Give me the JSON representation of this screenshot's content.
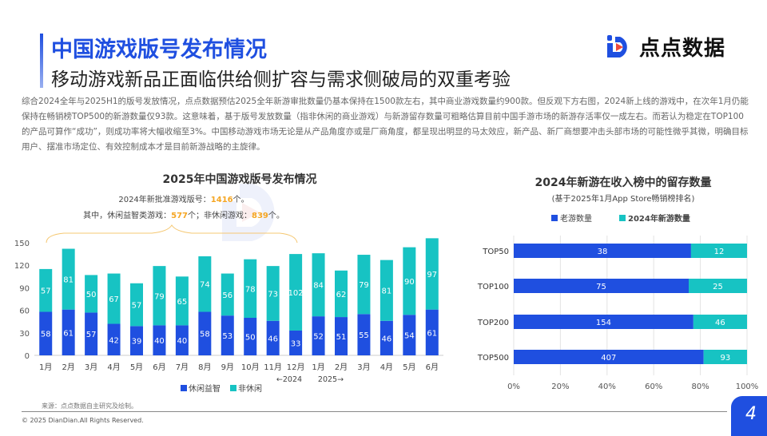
{
  "header": {
    "title": "中国游戏版号发布情况",
    "subtitle": "移动游戏新品正面临供给侧扩容与需求侧破局的双重考验",
    "logo_text": "点点数据"
  },
  "paragraph": "综合2024全年与2025H1的版号发放情况，点点数据预估2025全年新游审批数量仍基本保持在1500款左右，其中商业游戏数量约900款。但反观下方右图，2024新上线的游戏中，在次年1月仍能保持在畅销榜TOP500的新游数量仅93款。这意味着，基于版号发放数量（指非休闲的商业游戏）与新游留存数量可粗略估算目前中国手游市场的新游存活率仅一成左右。而若认为稳定在TOP100的产品可算作“成功”，则成功率将大幅收缩至3%。中国移动游戏市场无论是从产品角度亦或是厂商角度，都呈现出明显的马太效应，新产品、新厂商想要冲击头部市场的可能性微乎其微，明确目标用户、摆准市场定位、有效控制成本才是目前新游战略的主旋律。",
  "watermark": "点点数据",
  "annotation": {
    "line1_prefix": "2024年新批准游戏版号：",
    "line1_value": "1416",
    "line1_suffix": "个。",
    "line2_prefix": "其中，休闲益智类游戏：",
    "line2_value1": "577",
    "line2_mid": "个；非休闲游戏：",
    "line2_value2": "839",
    "line2_suffix": "个。",
    "highlight_color": "#f5a623"
  },
  "chart_data": [
    {
      "type": "bar",
      "stacked": true,
      "title": "2025年中国游戏版号发布情况",
      "categories": [
        "1月",
        "2月",
        "3月",
        "4月",
        "5月",
        "6月",
        "7月",
        "8月",
        "9月",
        "10月",
        "11月",
        "12月",
        "1月",
        "2月",
        "3月",
        "4月",
        "5月",
        "6月"
      ],
      "year_markers": {
        "left": "←2024",
        "right": "2025→"
      },
      "ylim": [
        0,
        150
      ],
      "yticks": [
        0,
        30,
        60,
        90,
        120,
        150
      ],
      "series": [
        {
          "name": "休闲益智",
          "color": "#1f4fe0",
          "values": [
            58,
            61,
            57,
            42,
            39,
            40,
            40,
            58,
            53,
            50,
            46,
            33,
            52,
            51,
            55,
            46,
            54,
            61
          ]
        },
        {
          "name": "非休闲",
          "color": "#17c3c3",
          "values": [
            57,
            81,
            50,
            67,
            57,
            79,
            65,
            74,
            56,
            78,
            73,
            102,
            84,
            62,
            79,
            81,
            90,
            97
          ]
        }
      ],
      "legend": "bottom"
    },
    {
      "type": "bar",
      "orientation": "horizontal",
      "stacked": true,
      "percent": true,
      "title": "2024年新游在收入榜中的留存数量",
      "subtitle": "(基于2025年1月App Store畅销榜排名)",
      "categories": [
        "TOP50",
        "TOP100",
        "TOP200",
        "TOP500"
      ],
      "xticks": [
        "0%",
        "20%",
        "40%",
        "60%",
        "80%",
        "100%"
      ],
      "series": [
        {
          "name": "老游数量",
          "color": "#1f4fe0",
          "values": [
            38,
            75,
            154,
            407
          ]
        },
        {
          "name": "2024年新游数量",
          "color": "#17c3c3",
          "values": [
            12,
            25,
            46,
            93
          ]
        }
      ],
      "legend": "top",
      "grid": true
    }
  ],
  "footer": {
    "source": "来源：点点数据自主研究及绘制。",
    "copyright": "© 2025 DianDian.All Rights Reserved.",
    "page": "4"
  }
}
